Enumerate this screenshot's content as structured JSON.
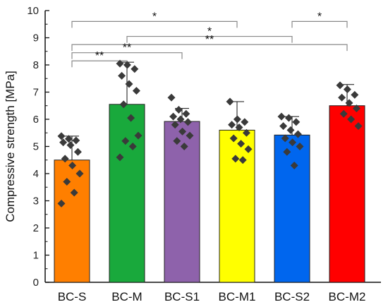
{
  "chart_data": {
    "type": "bar",
    "categories": [
      "BC-S",
      "BC-M",
      "BC-S1",
      "BC-M1",
      "BC-S2",
      "BC-M2"
    ],
    "values": [
      4.5,
      6.55,
      5.92,
      5.6,
      5.42,
      6.5
    ],
    "errors": [
      0.88,
      1.55,
      0.48,
      1.05,
      0.68,
      0.78
    ],
    "colors": [
      "#ff7f00",
      "#19a93c",
      "#8e62ab",
      "#ffff00",
      "#0066ee",
      "#ff0000"
    ],
    "points": [
      [
        5.38,
        5.28,
        5.22,
        5.15,
        5.05,
        4.8,
        4.55,
        4.3,
        4.0,
        3.7,
        3.3,
        2.9
      ],
      [
        8.05,
        8.0,
        7.85,
        7.6,
        7.3,
        7.05,
        6.55,
        6.05,
        5.4,
        5.2,
        5.0,
        4.6
      ],
      [
        6.8,
        6.35,
        6.2,
        6.1,
        6.0,
        5.9,
        5.8,
        5.55,
        5.4,
        5.2,
        5.0
      ],
      [
        6.65,
        6.0,
        5.9,
        5.8,
        5.7,
        5.5,
        5.3,
        5.1,
        4.9,
        4.55,
        4.5
      ],
      [
        6.1,
        6.05,
        5.9,
        5.75,
        5.6,
        5.45,
        5.3,
        5.15,
        5.0,
        4.8,
        4.3
      ],
      [
        7.25,
        7.1,
        6.9,
        6.8,
        6.6,
        6.4,
        6.2,
        6.0,
        5.75
      ]
    ],
    "ylabel": "Compressive strength [MPa]",
    "ylim": [
      0,
      10
    ],
    "yticks": [
      0,
      1,
      2,
      3,
      4,
      5,
      6,
      7,
      8,
      9,
      10
    ],
    "significance": [
      {
        "from": 0,
        "to": 3,
        "y": 9.6,
        "label": "*"
      },
      {
        "from": 1,
        "to": 4,
        "y": 9.05,
        "label": "*"
      },
      {
        "from": 4,
        "to": 5,
        "y": 9.6,
        "label": "*"
      },
      {
        "from": 0,
        "to": 5,
        "y": 8.75,
        "label": "**"
      },
      {
        "from": 0,
        "to": 2,
        "y": 8.45,
        "label": "**"
      },
      {
        "from": 0,
        "to": 1,
        "y": 8.15,
        "label": "**"
      }
    ]
  }
}
